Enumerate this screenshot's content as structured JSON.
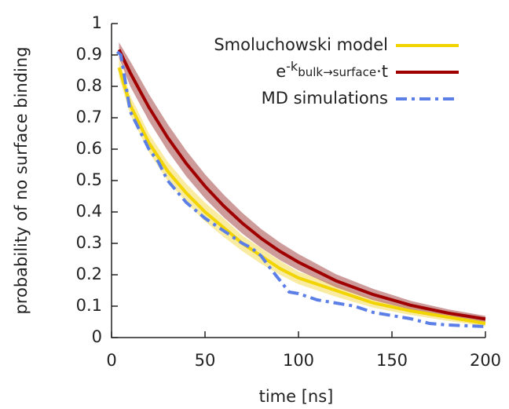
{
  "chart_data": {
    "type": "line",
    "xlabel": "time [ns]",
    "ylabel": "probability of no surface binding",
    "xlim": [
      0,
      200
    ],
    "ylim": [
      0,
      1
    ],
    "xticks": [
      0,
      50,
      100,
      150,
      200
    ],
    "yticks": [
      0,
      0.1,
      0.2,
      0.3,
      0.4,
      0.5,
      0.6,
      0.7,
      0.8,
      0.9,
      1
    ],
    "legend": "top-right",
    "series": [
      {
        "name": [
          "Smoluchowski model"
        ],
        "color": "#f2d400",
        "band_color": "#f7e27a",
        "style": "solid",
        "x": [
          4,
          10,
          20,
          30,
          40,
          50,
          60,
          70,
          80,
          90,
          100,
          120,
          140,
          160,
          180,
          200
        ],
        "values": [
          0.86,
          0.74,
          0.62,
          0.53,
          0.46,
          0.4,
          0.35,
          0.3,
          0.26,
          0.22,
          0.19,
          0.15,
          0.11,
          0.085,
          0.065,
          0.045
        ],
        "lower": [
          0.83,
          0.71,
          0.59,
          0.5,
          0.43,
          0.37,
          0.32,
          0.275,
          0.235,
          0.2,
          0.17,
          0.13,
          0.095,
          0.072,
          0.053,
          0.036
        ],
        "upper": [
          0.89,
          0.77,
          0.65,
          0.56,
          0.49,
          0.43,
          0.38,
          0.325,
          0.285,
          0.245,
          0.21,
          0.17,
          0.125,
          0.098,
          0.077,
          0.054
        ]
      },
      {
        "name": [
          "e",
          "-k",
          "bulk→surface",
          "·t"
        ],
        "color": "#a00000",
        "band_color": "#b97070",
        "style": "solid",
        "x": [
          4,
          10,
          20,
          30,
          40,
          50,
          60,
          70,
          80,
          90,
          100,
          120,
          140,
          160,
          180,
          200
        ],
        "values": [
          0.917,
          0.843,
          0.733,
          0.637,
          0.554,
          0.482,
          0.419,
          0.364,
          0.316,
          0.275,
          0.24,
          0.181,
          0.137,
          0.103,
          0.078,
          0.059
        ],
        "lower": [
          0.89,
          0.8,
          0.69,
          0.595,
          0.513,
          0.443,
          0.383,
          0.331,
          0.286,
          0.247,
          0.214,
          0.16,
          0.119,
          0.089,
          0.066,
          0.049
        ],
        "upper": [
          0.94,
          0.88,
          0.775,
          0.68,
          0.595,
          0.52,
          0.455,
          0.397,
          0.346,
          0.303,
          0.266,
          0.202,
          0.155,
          0.117,
          0.09,
          0.069
        ]
      },
      {
        "name": [
          "MD simulations"
        ],
        "color": "#5b7fe6",
        "style": "dashdot",
        "x": [
          3,
          5,
          10,
          20,
          25,
          30,
          40,
          50,
          60,
          70,
          75,
          80,
          85,
          95,
          100,
          110,
          120,
          130,
          140,
          150,
          160,
          170,
          180,
          200
        ],
        "values": [
          0.91,
          0.9,
          0.72,
          0.6,
          0.56,
          0.5,
          0.43,
          0.38,
          0.34,
          0.3,
          0.285,
          0.26,
          0.22,
          0.145,
          0.14,
          0.12,
          0.11,
          0.1,
          0.08,
          0.07,
          0.06,
          0.045,
          0.04,
          0.035
        ]
      }
    ]
  }
}
